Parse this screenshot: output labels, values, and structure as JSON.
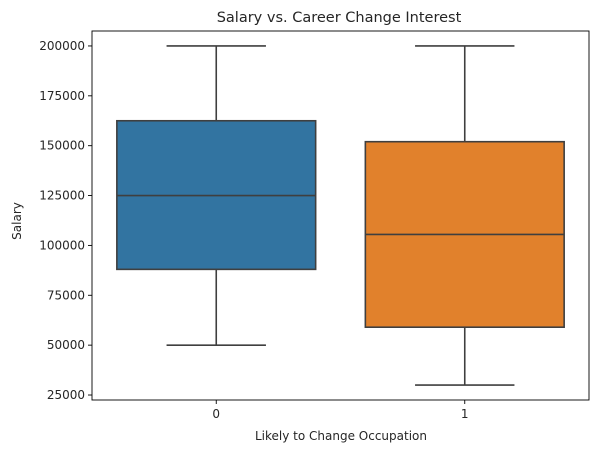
{
  "chart_data": {
    "type": "box",
    "title": "Salary vs. Career Change Interest",
    "xlabel": "Likely to Change Occupation",
    "ylabel": "Salary",
    "categories": [
      "0",
      "1"
    ],
    "ylim": [
      22500,
      207500
    ],
    "yticks": [
      25000,
      50000,
      75000,
      100000,
      125000,
      150000,
      175000,
      200000
    ],
    "grid": false,
    "legend": "none",
    "boxes": [
      {
        "category": "0",
        "min": 50000,
        "q1": 88000,
        "median": 125000,
        "q3": 162500,
        "max": 200000,
        "color": "#3274a1"
      },
      {
        "category": "1",
        "min": 30000,
        "q1": 59000,
        "median": 105500,
        "q3": 152000,
        "max": 200000,
        "color": "#e1812c"
      }
    ],
    "line_color": "#3f3f3f"
  }
}
